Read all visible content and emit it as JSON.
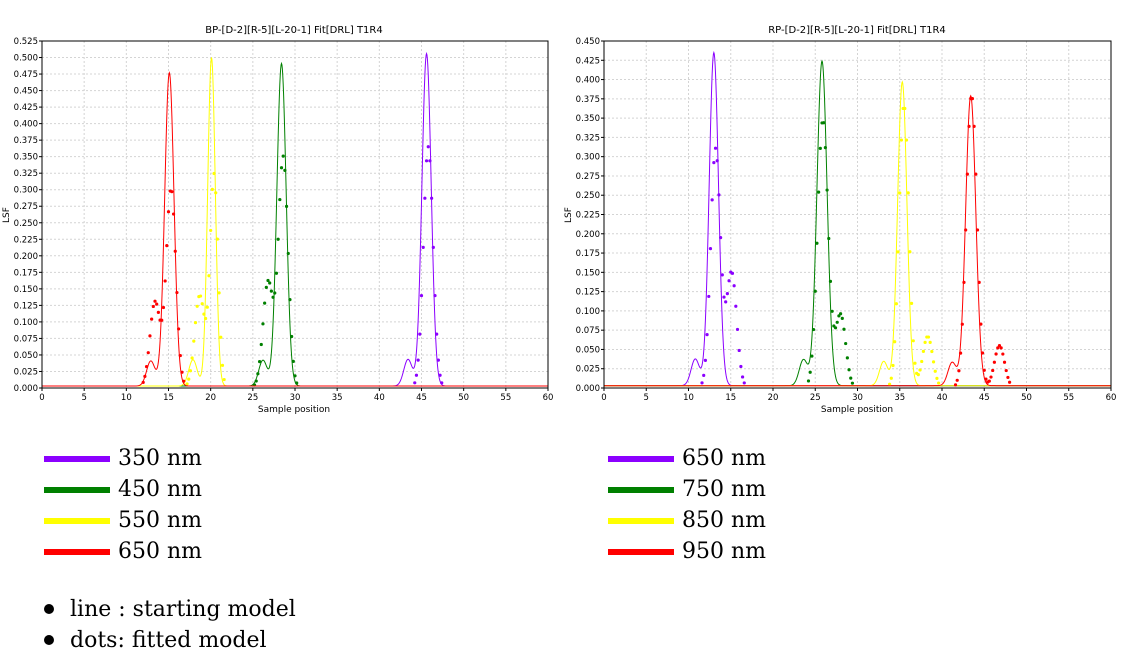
{
  "chart_data": [
    {
      "type": "line",
      "title": "BP-[D-2][R-5][L-20-1] Fit[DRL] T1R4",
      "xlabel": "Sample position",
      "ylabel": "LSF",
      "xlim": [
        0,
        60
      ],
      "ylim": [
        0,
        0.525
      ],
      "xticks": [
        "0",
        "5",
        "10",
        "15",
        "20",
        "25",
        "30",
        "35",
        "40",
        "45",
        "50",
        "55",
        "60"
      ],
      "yticks": [
        "0.000",
        "0.025",
        "0.050",
        "0.075",
        "0.100",
        "0.125",
        "0.150",
        "0.175",
        "0.200",
        "0.225",
        "0.250",
        "0.275",
        "0.300",
        "0.325",
        "0.350",
        "0.375",
        "0.400",
        "0.425",
        "0.450",
        "0.475",
        "0.500",
        "0.525"
      ],
      "grid": true,
      "series": [
        {
          "name": "350 nm",
          "color": "#8B00FF",
          "start_peak": [
            45.6,
            0.503
          ],
          "fitted_peak": [
            45.8,
            0.365
          ],
          "width": 0.55
        },
        {
          "name": "450 nm",
          "color": "#008000",
          "start_peak": [
            28.4,
            0.488
          ],
          "fitted_peak": [
            28.6,
            0.349
          ],
          "width": 0.55,
          "fitted_shoulder": [
            26.8,
            0.16
          ]
        },
        {
          "name": "550 nm",
          "color": "#FFFF00",
          "start_peak": [
            20.1,
            0.497
          ],
          "fitted_peak": [
            20.4,
            0.322
          ],
          "width": 0.45,
          "fitted_shoulder": [
            18.7,
            0.14
          ]
        },
        {
          "name": "650 nm",
          "color": "#FF0000",
          "start_peak": [
            15.1,
            0.474
          ],
          "fitted_peak": [
            15.3,
            0.301
          ],
          "width": 0.55,
          "fitted_shoulder": [
            13.4,
            0.13
          ]
        }
      ]
    },
    {
      "type": "line",
      "title": "RP-[D-2][R-5][L-20-1] Fit[DRL] T1R4",
      "xlabel": "Sample position",
      "ylabel": "LSF",
      "xlim": [
        0,
        60
      ],
      "ylim": [
        0,
        0.45
      ],
      "xticks": [
        "0",
        "5",
        "10",
        "15",
        "20",
        "25",
        "30",
        "35",
        "40",
        "45",
        "50",
        "55",
        "60"
      ],
      "yticks": [
        "0.000",
        "0.025",
        "0.050",
        "0.075",
        "0.100",
        "0.125",
        "0.150",
        "0.175",
        "0.200",
        "0.225",
        "0.250",
        "0.275",
        "0.300",
        "0.325",
        "0.350",
        "0.375",
        "0.400",
        "0.425",
        "0.450"
      ],
      "grid": true,
      "series": [
        {
          "name": "650 nm",
          "color": "#8B00FF",
          "start_peak": [
            13.0,
            0.432
          ],
          "fitted_peak": [
            13.2,
            0.31
          ],
          "width": 0.55,
          "fitted_shoulder": [
            15.1,
            0.15
          ]
        },
        {
          "name": "750 nm",
          "color": "#008000",
          "start_peak": [
            25.8,
            0.421
          ],
          "fitted_peak": [
            25.9,
            0.348
          ],
          "width": 0.6,
          "fitted_shoulder": [
            28.0,
            0.095
          ]
        },
        {
          "name": "850 nm",
          "color": "#FFFF00",
          "start_peak": [
            35.3,
            0.394
          ],
          "fitted_peak": [
            35.5,
            0.368
          ],
          "width": 0.55,
          "fitted_shoulder": [
            38.3,
            0.067
          ]
        },
        {
          "name": "950 nm",
          "color": "#FF0000",
          "start_peak": [
            43.4,
            0.376
          ],
          "fitted_peak": [
            43.5,
            0.38
          ],
          "width": 0.6,
          "fitted_shoulder": [
            46.8,
            0.055
          ]
        }
      ]
    }
  ],
  "legend_left": [
    {
      "label": "350 nm",
      "color": "#8B00FF"
    },
    {
      "label": "450 nm",
      "color": "#008000"
    },
    {
      "label": "550 nm",
      "color": "#FFFF00"
    },
    {
      "label": "650 nm",
      "color": "#FF0000"
    }
  ],
  "legend_right": [
    {
      "label": "650 nm",
      "color": "#8B00FF"
    },
    {
      "label": "750 nm",
      "color": "#008000"
    },
    {
      "label": "850 nm",
      "color": "#FFFF00"
    },
    {
      "label": "950 nm",
      "color": "#FF0000"
    }
  ],
  "notes": {
    "line": "line : starting model",
    "dots": "dots: fitted model"
  }
}
